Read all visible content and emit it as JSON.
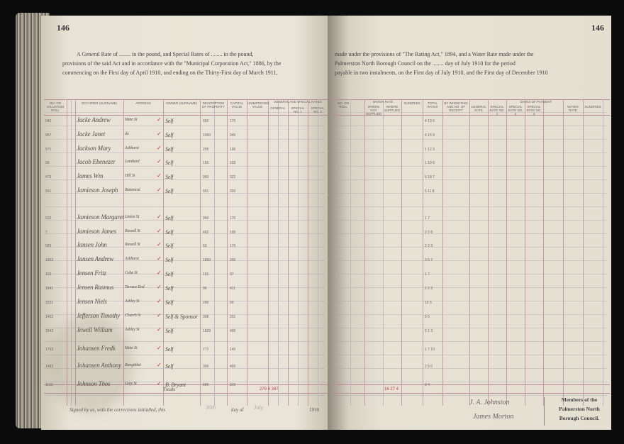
{
  "page_number_left": "146",
  "page_number_right": "146",
  "header_left": [
    "A General Rate of ........ in the pound, and Special Rates of ........ in the pound,",
    "provisions of the said Act and in accordance with the \"Municipal Corporation Act,\" 1886, by the",
    "commencing on the First day of April 1910, and ending on the Thirty-First day of March 1911,"
  ],
  "header_right": [
    "made under the provisions of \"The Rating Act,\" 1894, and a Water Rate made under the",
    "Palmerston North Borough Council on the ........ day of July 1910 for the period",
    "payable in two instalments, on the First day of July 1910, and the First day of December 1910"
  ],
  "columns_left": [
    "No. on Valuation Roll",
    "",
    "OCCUPIER (Surname)",
    "ADDRESS",
    "OWNER (Surname)",
    "Description of Property",
    "Capital Value",
    "Unimproved Value",
    "GENERAL AND SPECIAL RATES",
    "General",
    "Special No. 1",
    "Special No. 2"
  ],
  "columns_right": [
    "No. on Roll",
    "WATER RATE",
    "Where not Supplied",
    "Where Supplied",
    "Sundries",
    "Total Rates",
    "By whom paid and No. of Receipt",
    "DATES OF PAYMENT",
    "General Rate",
    "Special Rate No. 1",
    "Special Rate No. 2",
    "Special Rate No. 3",
    "Water Rate",
    "Sundries"
  ],
  "rows": [
    {
      "no": "942",
      "occupier": "Jacke Andrew",
      "address": "Main St",
      "owner": "Self",
      "cap": "650",
      "unimp": "170",
      "total": "4 19 6"
    },
    {
      "no": "957",
      "occupier": "Jacke Janet",
      "address": "do",
      "owner": "Self",
      "cap": "1000",
      "unimp": "240",
      "total": "4 15 9"
    },
    {
      "no": "571",
      "occupier": "Jackson Mary",
      "address": "Ashhurst",
      "owner": "Self",
      "cap": "205",
      "unimp": "195",
      "total": "1 12 3"
    },
    {
      "no": "90",
      "occupier": "Jacob Ebenezer",
      "address": "Lombard",
      "owner": "Self",
      "cap": "155",
      "unimp": "103",
      "total": "1 19 6"
    },
    {
      "no": "473",
      "occupier": "James Wm",
      "address": "Hill St",
      "owner": "Self",
      "cap": "950",
      "unimp": "322",
      "total": "6 18 7"
    },
    {
      "no": "561",
      "occupier": "Jamieson Joseph",
      "address": "Botanical",
      "owner": "Self",
      "cap": "651",
      "unimp": "320",
      "total": "5 11 8"
    },
    {
      "no": "632",
      "occupier": "Jamieson Margaret",
      "address": "Linton St",
      "owner": "Self",
      "cap": "950",
      "unimp": "170",
      "total": "1 7"
    },
    {
      "no": "7",
      "occupier": "Jamieson James",
      "address": "Russell St",
      "owner": "Self",
      "cap": "462",
      "unimp": "100",
      "total": "2 2 6"
    },
    {
      "no": "583",
      "occupier": "Jansen John",
      "address": "Russell St",
      "owner": "Self",
      "cap": "63",
      "unimp": "170",
      "total": "2 2 3"
    },
    {
      "no": "1902",
      "occupier": "Jansen Andrew",
      "address": "Ashhurst",
      "owner": "Self",
      "cap": "1850",
      "unimp": "200",
      "total": "3 5 7"
    },
    {
      "no": "103",
      "occupier": "Jensen Fritz",
      "address": "Cuba St",
      "owner": "Self",
      "cap": "191",
      "unimp": "97",
      "total": "1 7"
    },
    {
      "no": "1541",
      "occupier": "Jensen Rasmus",
      "address": "Terrace End",
      "owner": "Self",
      "cap": "96",
      "unimp": "411",
      "total": "2 2 3"
    },
    {
      "no": "1521",
      "occupier": "Jensen Niels",
      "address": "Ashley St",
      "owner": "Self",
      "cap": "290",
      "unimp": "90",
      "total": "15 6"
    },
    {
      "no": "1402",
      "occupier": "Jefferson Timothy",
      "address": "Church St",
      "owner": "Self & Sponsor",
      "cap": "308",
      "unimp": "201",
      "total": "5 5"
    },
    {
      "no": "1542",
      "occupier": "Jewell William",
      "address": "Ashley St",
      "owner": "Self",
      "cap": "1829",
      "unimp": "400",
      "total": "5 1 3"
    },
    {
      "no": "1793",
      "occupier": "Johansen Fredk",
      "address": "Main St",
      "owner": "Self",
      "cap": "772",
      "unimp": "140",
      "total": "1 7 10"
    },
    {
      "no": "1483",
      "occupier": "Johansen Anthony",
      "address": "Rangitikei",
      "owner": "Self",
      "cap": "399",
      "unimp": "400",
      "total": "2 5 0"
    },
    {
      "no": "1162",
      "occupier": "Johnson Thos",
      "address": "Grey St",
      "owner": "B. Bryant",
      "cap": "666",
      "unimp": "310",
      "total": "9 4"
    }
  ],
  "totals_label": "Totals",
  "totals_left": "279 4 387",
  "totals_right": "16 27 4",
  "footer_signed": "Signed by us, with the corrections initialled, this",
  "footer_day_value": "30th",
  "footer_day_of": "day of",
  "footer_month": "July",
  "footer_year": "1910",
  "signatures": [
    "J. A. Johnston",
    "James Morton"
  ],
  "members_text": [
    "Members of the",
    "Palmerston North",
    "Borough Council."
  ],
  "colors": {
    "paper": "#e6e1d3",
    "ruling_red": "#c79aa4",
    "ink": "#55504a",
    "tick": "#c0303f",
    "background": "#0b0b0b"
  }
}
